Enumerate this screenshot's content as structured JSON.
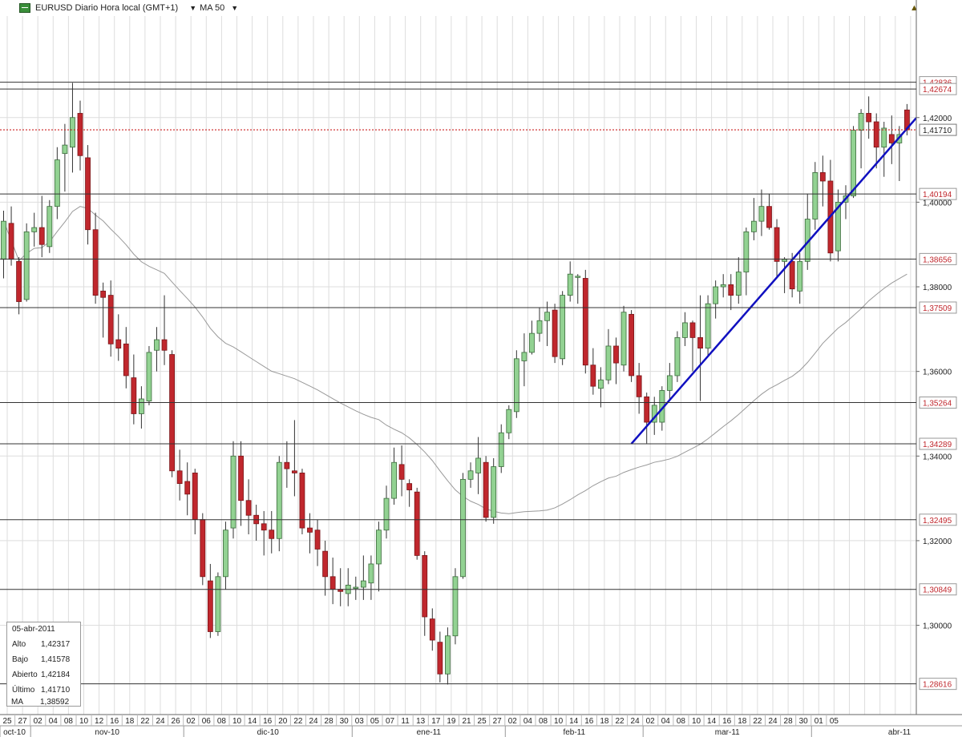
{
  "toolbar": {
    "symbol": "EURUSD Diario Hora local (GMT+1)",
    "indicator": "MA 50"
  },
  "info_box": {
    "date": "05-abr-2011",
    "rows": [
      {
        "label": "Alto",
        "value": "1,42317"
      },
      {
        "label": "Bajo",
        "value": "1,41578"
      },
      {
        "label": "Abierto",
        "value": "1,42184"
      },
      {
        "label": "Último",
        "value": "1,41710"
      },
      {
        "label": "MA",
        "value": "1,38592"
      }
    ]
  },
  "colors": {
    "up": "#92d292",
    "down": "#c0272d",
    "wick": "#333333",
    "ma": "#999999",
    "trendline": "#1010c0",
    "level_label": "#c0272d",
    "last_price": "#cc2222",
    "grid": "#dddddd"
  },
  "chart_data": {
    "type": "candlestick",
    "ylim": [
      1.2789,
      1.444
    ],
    "yticks": [
      "1,42000",
      "1,40000",
      "1,38000",
      "1,36000",
      "1,34000",
      "1,32000",
      "1,30000"
    ],
    "yticks_values": [
      1.42,
      1.4,
      1.38,
      1.36,
      1.34,
      1.32,
      1.3
    ],
    "day_labels": [
      "25",
      "27",
      "02",
      "04",
      "08",
      "10",
      "12",
      "16",
      "18",
      "22",
      "24",
      "26",
      "02",
      "06",
      "08",
      "10",
      "14",
      "16",
      "20",
      "22",
      "24",
      "28",
      "30",
      "03",
      "05",
      "07",
      "11",
      "13",
      "17",
      "19",
      "21",
      "25",
      "27",
      "02",
      "04",
      "08",
      "10",
      "14",
      "16",
      "18",
      "22",
      "24",
      "02",
      "04",
      "08",
      "10",
      "14",
      "16",
      "18",
      "22",
      "24",
      "28",
      "30",
      "01",
      "05"
    ],
    "month_labels": [
      "oct-10",
      "nov-10",
      "dic-10",
      "ene-11",
      "feb-11",
      "mar-11",
      "abr-11"
    ],
    "levels": [
      {
        "label": "1,42836",
        "value": 1.42836
      },
      {
        "label": "1,42674",
        "value": 1.42674
      },
      {
        "label": "1,40194",
        "value": 1.40194
      },
      {
        "label": "1,38656",
        "value": 1.38656
      },
      {
        "label": "1,37509",
        "value": 1.37509
      },
      {
        "label": "1,35264",
        "value": 1.35264
      },
      {
        "label": "1,34289",
        "value": 1.34289
      },
      {
        "label": "1,32495",
        "value": 1.32495
      },
      {
        "label": "1,30849",
        "value": 1.30849
      },
      {
        "label": "1,28616",
        "value": 1.28616
      }
    ],
    "last_price": {
      "label": "1,41710",
      "value": 1.4171
    },
    "trendline": {
      "from": {
        "date": "14-feb-2011",
        "value": 1.3429
      },
      "to": {
        "date": "05-abr-2011",
        "value": 1.4174
      }
    },
    "candles": [
      {
        "d": "21-oct-2010",
        "o": 1.3865,
        "h": 1.398,
        "l": 1.382,
        "c": 1.3955
      },
      {
        "d": "22-oct-2010",
        "o": 1.395,
        "h": 1.399,
        "l": 1.385,
        "c": 1.3865
      },
      {
        "d": "25-oct-2010",
        "o": 1.386,
        "h": 1.387,
        "l": 1.3735,
        "c": 1.3765
      },
      {
        "d": "26-oct-2010",
        "o": 1.377,
        "h": 1.395,
        "l": 1.3765,
        "c": 1.393
      },
      {
        "d": "27-oct-2010",
        "o": 1.393,
        "h": 1.3975,
        "l": 1.3895,
        "c": 1.394
      },
      {
        "d": "28-oct-2010",
        "o": 1.394,
        "h": 1.4015,
        "l": 1.387,
        "c": 1.39
      },
      {
        "d": "29-oct-2010",
        "o": 1.3895,
        "h": 1.4005,
        "l": 1.388,
        "c": 1.399
      },
      {
        "d": "01-nov-2010",
        "o": 1.399,
        "h": 1.413,
        "l": 1.396,
        "c": 1.41
      },
      {
        "d": "02-nov-2010",
        "o": 1.4115,
        "h": 1.4185,
        "l": 1.4025,
        "c": 1.4135
      },
      {
        "d": "03-nov-2010",
        "o": 1.413,
        "h": 1.4282,
        "l": 1.407,
        "c": 1.42
      },
      {
        "d": "04-nov-2010",
        "o": 1.421,
        "h": 1.424,
        "l": 1.4075,
        "c": 1.411
      },
      {
        "d": "05-nov-2010",
        "o": 1.4105,
        "h": 1.4135,
        "l": 1.39,
        "c": 1.3935
      },
      {
        "d": "08-nov-2010",
        "o": 1.3935,
        "h": 1.3975,
        "l": 1.376,
        "c": 1.378
      },
      {
        "d": "09-nov-2010",
        "o": 1.379,
        "h": 1.381,
        "l": 1.368,
        "c": 1.3775
      },
      {
        "d": "10-nov-2010",
        "o": 1.378,
        "h": 1.3815,
        "l": 1.3635,
        "c": 1.3665
      },
      {
        "d": "11-nov-2010",
        "o": 1.3675,
        "h": 1.3735,
        "l": 1.3625,
        "c": 1.3655
      },
      {
        "d": "12-nov-2010",
        "o": 1.3665,
        "h": 1.3705,
        "l": 1.356,
        "c": 1.359
      },
      {
        "d": "15-nov-2010",
        "o": 1.3585,
        "h": 1.364,
        "l": 1.3475,
        "c": 1.35
      },
      {
        "d": "16-nov-2010",
        "o": 1.35,
        "h": 1.3565,
        "l": 1.3465,
        "c": 1.3535
      },
      {
        "d": "17-nov-2010",
        "o": 1.353,
        "h": 1.366,
        "l": 1.352,
        "c": 1.3645
      },
      {
        "d": "18-nov-2010",
        "o": 1.365,
        "h": 1.3705,
        "l": 1.36,
        "c": 1.3675
      },
      {
        "d": "19-nov-2010",
        "o": 1.3675,
        "h": 1.378,
        "l": 1.3615,
        "c": 1.365
      },
      {
        "d": "22-nov-2010",
        "o": 1.364,
        "h": 1.365,
        "l": 1.335,
        "c": 1.3365
      },
      {
        "d": "23-nov-2010",
        "o": 1.3365,
        "h": 1.3415,
        "l": 1.3295,
        "c": 1.3335
      },
      {
        "d": "24-nov-2010",
        "o": 1.334,
        "h": 1.3385,
        "l": 1.326,
        "c": 1.331
      },
      {
        "d": "25-nov-2010",
        "o": 1.336,
        "h": 1.337,
        "l": 1.3215,
        "c": 1.325
      },
      {
        "d": "26-nov-2010",
        "o": 1.325,
        "h": 1.3265,
        "l": 1.3095,
        "c": 1.3115
      },
      {
        "d": "29-nov-2010",
        "o": 1.3105,
        "h": 1.3145,
        "l": 1.297,
        "c": 1.2985
      },
      {
        "d": "30-nov-2010",
        "o": 1.2985,
        "h": 1.3125,
        "l": 1.2975,
        "c": 1.3115
      },
      {
        "d": "01-dic-2010",
        "o": 1.3115,
        "h": 1.3245,
        "l": 1.3085,
        "c": 1.3225
      },
      {
        "d": "02-dic-2010",
        "o": 1.323,
        "h": 1.3435,
        "l": 1.3205,
        "c": 1.34
      },
      {
        "d": "03-dic-2010",
        "o": 1.34,
        "h": 1.3435,
        "l": 1.3235,
        "c": 1.3295
      },
      {
        "d": "06-dic-2010",
        "o": 1.3295,
        "h": 1.3345,
        "l": 1.3215,
        "c": 1.326
      },
      {
        "d": "07-dic-2010",
        "o": 1.326,
        "h": 1.3285,
        "l": 1.32,
        "c": 1.324
      },
      {
        "d": "08-dic-2010",
        "o": 1.324,
        "h": 1.327,
        "l": 1.3165,
        "c": 1.3225
      },
      {
        "d": "09-dic-2010",
        "o": 1.3225,
        "h": 1.327,
        "l": 1.317,
        "c": 1.3205
      },
      {
        "d": "10-dic-2010",
        "o": 1.3205,
        "h": 1.34,
        "l": 1.3175,
        "c": 1.3385
      },
      {
        "d": "13-dic-2010",
        "o": 1.3385,
        "h": 1.3435,
        "l": 1.3325,
        "c": 1.337
      },
      {
        "d": "14-dic-2010",
        "o": 1.3365,
        "h": 1.3485,
        "l": 1.3305,
        "c": 1.336
      },
      {
        "d": "15-dic-2010",
        "o": 1.336,
        "h": 1.337,
        "l": 1.3215,
        "c": 1.323
      },
      {
        "d": "16-dic-2010",
        "o": 1.323,
        "h": 1.3265,
        "l": 1.317,
        "c": 1.322
      },
      {
        "d": "17-dic-2010",
        "o": 1.3225,
        "h": 1.325,
        "l": 1.314,
        "c": 1.318
      },
      {
        "d": "20-dic-2010",
        "o": 1.3175,
        "h": 1.32,
        "l": 1.307,
        "c": 1.3115
      },
      {
        "d": "21-dic-2010",
        "o": 1.3115,
        "h": 1.316,
        "l": 1.305,
        "c": 1.3085
      },
      {
        "d": "22-dic-2010",
        "o": 1.3085,
        "h": 1.3135,
        "l": 1.3045,
        "c": 1.308
      },
      {
        "d": "23-dic-2010",
        "o": 1.3075,
        "h": 1.3135,
        "l": 1.3045,
        "c": 1.3095
      },
      {
        "d": "24-dic-2010",
        "o": 1.309,
        "h": 1.3115,
        "l": 1.306,
        "c": 1.309
      },
      {
        "d": "27-dic-2010",
        "o": 1.309,
        "h": 1.3165,
        "l": 1.306,
        "c": 1.3105
      },
      {
        "d": "28-dic-2010",
        "o": 1.31,
        "h": 1.3165,
        "l": 1.306,
        "c": 1.3145
      },
      {
        "d": "29-dic-2010",
        "o": 1.3145,
        "h": 1.3245,
        "l": 1.308,
        "c": 1.3225
      },
      {
        "d": "30-dic-2010",
        "o": 1.3225,
        "h": 1.333,
        "l": 1.3205,
        "c": 1.33
      },
      {
        "d": "31-dic-2010",
        "o": 1.33,
        "h": 1.342,
        "l": 1.3285,
        "c": 1.3385
      },
      {
        "d": "03-ene-2011",
        "o": 1.338,
        "h": 1.3425,
        "l": 1.3305,
        "c": 1.3345
      },
      {
        "d": "04-ene-2011",
        "o": 1.3335,
        "h": 1.3345,
        "l": 1.328,
        "c": 1.332
      },
      {
        "d": "05-ene-2011",
        "o": 1.3315,
        "h": 1.3325,
        "l": 1.3155,
        "c": 1.3165
      },
      {
        "d": "06-ene-2011",
        "o": 1.3165,
        "h": 1.3175,
        "l": 1.2975,
        "c": 1.302
      },
      {
        "d": "07-ene-2011",
        "o": 1.3015,
        "h": 1.304,
        "l": 1.294,
        "c": 1.2965
      },
      {
        "d": "10-ene-2011",
        "o": 1.296,
        "h": 1.2985,
        "l": 1.2865,
        "c": 1.2885
      },
      {
        "d": "11-ene-2011",
        "o": 1.2885,
        "h": 1.2995,
        "l": 1.286,
        "c": 1.2975
      },
      {
        "d": "12-ene-2011",
        "o": 1.2975,
        "h": 1.3135,
        "l": 1.2955,
        "c": 1.3115
      },
      {
        "d": "13-ene-2011",
        "o": 1.3115,
        "h": 1.336,
        "l": 1.311,
        "c": 1.3345
      },
      {
        "d": "14-ene-2011",
        "o": 1.3345,
        "h": 1.3385,
        "l": 1.3325,
        "c": 1.3365
      },
      {
        "d": "17-ene-2011",
        "o": 1.336,
        "h": 1.3445,
        "l": 1.331,
        "c": 1.3395
      },
      {
        "d": "18-ene-2011",
        "o": 1.3385,
        "h": 1.34,
        "l": 1.3245,
        "c": 1.3255
      },
      {
        "d": "19-ene-2011",
        "o": 1.3255,
        "h": 1.3395,
        "l": 1.324,
        "c": 1.3375
      },
      {
        "d": "20-ene-2011",
        "o": 1.3375,
        "h": 1.3475,
        "l": 1.336,
        "c": 1.3455
      },
      {
        "d": "21-ene-2011",
        "o": 1.3455,
        "h": 1.352,
        "l": 1.344,
        "c": 1.351
      },
      {
        "d": "24-ene-2011",
        "o": 1.3505,
        "h": 1.365,
        "l": 1.349,
        "c": 1.363
      },
      {
        "d": "25-ene-2011",
        "o": 1.3625,
        "h": 1.369,
        "l": 1.3565,
        "c": 1.3645
      },
      {
        "d": "26-ene-2011",
        "o": 1.3645,
        "h": 1.372,
        "l": 1.364,
        "c": 1.369
      },
      {
        "d": "27-ene-2011",
        "o": 1.369,
        "h": 1.375,
        "l": 1.367,
        "c": 1.372
      },
      {
        "d": "28-ene-2011",
        "o": 1.372,
        "h": 1.3765,
        "l": 1.366,
        "c": 1.374
      },
      {
        "d": "31-ene-2011",
        "o": 1.3745,
        "h": 1.376,
        "l": 1.362,
        "c": 1.3635
      },
      {
        "d": "01-feb-2011",
        "o": 1.363,
        "h": 1.379,
        "l": 1.3615,
        "c": 1.378
      },
      {
        "d": "02-feb-2011",
        "o": 1.378,
        "h": 1.386,
        "l": 1.3765,
        "c": 1.383
      },
      {
        "d": "03-feb-2011",
        "o": 1.3825,
        "h": 1.383,
        "l": 1.376,
        "c": 1.3825
      },
      {
        "d": "04-feb-2011",
        "o": 1.382,
        "h": 1.384,
        "l": 1.3595,
        "c": 1.3615
      },
      {
        "d": "07-feb-2011",
        "o": 1.3615,
        "h": 1.3655,
        "l": 1.3545,
        "c": 1.3565
      },
      {
        "d": "08-feb-2011",
        "o": 1.356,
        "h": 1.361,
        "l": 1.3515,
        "c": 1.358
      },
      {
        "d": "09-feb-2011",
        "o": 1.358,
        "h": 1.37,
        "l": 1.357,
        "c": 1.366
      },
      {
        "d": "10-feb-2011",
        "o": 1.366,
        "h": 1.368,
        "l": 1.357,
        "c": 1.362
      },
      {
        "d": "11-feb-2011",
        "o": 1.3615,
        "h": 1.3755,
        "l": 1.36,
        "c": 1.374
      },
      {
        "d": "14-feb-2011",
        "o": 1.3735,
        "h": 1.3745,
        "l": 1.3575,
        "c": 1.359
      },
      {
        "d": "15-feb-2011",
        "o": 1.359,
        "h": 1.362,
        "l": 1.35,
        "c": 1.354
      },
      {
        "d": "16-feb-2011",
        "o": 1.354,
        "h": 1.355,
        "l": 1.343,
        "c": 1.348
      },
      {
        "d": "17-feb-2011",
        "o": 1.348,
        "h": 1.354,
        "l": 1.345,
        "c": 1.352
      },
      {
        "d": "18-feb-2011",
        "o": 1.348,
        "h": 1.3565,
        "l": 1.346,
        "c": 1.3555
      },
      {
        "d": "21-feb-2011",
        "o": 1.3555,
        "h": 1.362,
        "l": 1.353,
        "c": 1.359
      },
      {
        "d": "22-feb-2011",
        "o": 1.359,
        "h": 1.3695,
        "l": 1.3575,
        "c": 1.368
      },
      {
        "d": "23-feb-2011",
        "o": 1.368,
        "h": 1.374,
        "l": 1.366,
        "c": 1.3715
      },
      {
        "d": "24-feb-2011",
        "o": 1.3715,
        "h": 1.372,
        "l": 1.36,
        "c": 1.368
      },
      {
        "d": "25-feb-2011",
        "o": 1.368,
        "h": 1.378,
        "l": 1.353,
        "c": 1.3655
      },
      {
        "d": "28-feb-2011",
        "o": 1.3655,
        "h": 1.378,
        "l": 1.3635,
        "c": 1.376
      },
      {
        "d": "01-mar-2011",
        "o": 1.376,
        "h": 1.3815,
        "l": 1.3725,
        "c": 1.38
      },
      {
        "d": "02-mar-2011",
        "o": 1.38,
        "h": 1.383,
        "l": 1.3775,
        "c": 1.3805
      },
      {
        "d": "03-mar-2011",
        "o": 1.3805,
        "h": 1.383,
        "l": 1.3745,
        "c": 1.378
      },
      {
        "d": "04-mar-2011",
        "o": 1.378,
        "h": 1.387,
        "l": 1.376,
        "c": 1.3835
      },
      {
        "d": "07-mar-2011",
        "o": 1.3835,
        "h": 1.394,
        "l": 1.378,
        "c": 1.393
      },
      {
        "d": "08-mar-2011",
        "o": 1.393,
        "h": 1.401,
        "l": 1.391,
        "c": 1.3955
      },
      {
        "d": "09-mar-2011",
        "o": 1.3955,
        "h": 1.403,
        "l": 1.392,
        "c": 1.399
      },
      {
        "d": "10-mar-2011",
        "o": 1.399,
        "h": 1.402,
        "l": 1.3935,
        "c": 1.394
      },
      {
        "d": "11-mar-2011",
        "o": 1.394,
        "h": 1.396,
        "l": 1.3825,
        "c": 1.386
      },
      {
        "d": "14-mar-2011",
        "o": 1.386,
        "h": 1.387,
        "l": 1.3785,
        "c": 1.3865
      },
      {
        "d": "15-mar-2011",
        "o": 1.386,
        "h": 1.388,
        "l": 1.3775,
        "c": 1.3795
      },
      {
        "d": "16-mar-2011",
        "o": 1.379,
        "h": 1.388,
        "l": 1.376,
        "c": 1.386
      },
      {
        "d": "17-mar-2011",
        "o": 1.386,
        "h": 1.402,
        "l": 1.384,
        "c": 1.396
      },
      {
        "d": "18-mar-2011",
        "o": 1.396,
        "h": 1.4095,
        "l": 1.3935,
        "c": 1.407
      },
      {
        "d": "21-mar-2011",
        "o": 1.407,
        "h": 1.411,
        "l": 1.399,
        "c": 1.405
      },
      {
        "d": "22-mar-2011",
        "o": 1.405,
        "h": 1.41,
        "l": 1.386,
        "c": 1.388
      },
      {
        "d": "23-mar-2011",
        "o": 1.3885,
        "h": 1.403,
        "l": 1.386,
        "c": 1.4
      },
      {
        "d": "24-mar-2011",
        "o": 1.4,
        "h": 1.404,
        "l": 1.396,
        "c": 1.4015
      },
      {
        "d": "25-mar-2011",
        "o": 1.4015,
        "h": 1.418,
        "l": 1.401,
        "c": 1.417
      },
      {
        "d": "28-mar-2011",
        "o": 1.417,
        "h": 1.422,
        "l": 1.408,
        "c": 1.421
      },
      {
        "d": "29-mar-2011",
        "o": 1.421,
        "h": 1.425,
        "l": 1.415,
        "c": 1.419
      },
      {
        "d": "30-mar-2011",
        "o": 1.419,
        "h": 1.421,
        "l": 1.408,
        "c": 1.413
      },
      {
        "d": "31-mar-2011",
        "o": 1.413,
        "h": 1.419,
        "l": 1.406,
        "c": 1.4175
      },
      {
        "d": "01-abr-2011",
        "o": 1.416,
        "h": 1.4205,
        "l": 1.409,
        "c": 1.414
      },
      {
        "d": "04-abr-2011",
        "o": 1.414,
        "h": 1.418,
        "l": 1.405,
        "c": 1.416
      },
      {
        "d": "05-abr-2011",
        "o": 1.4218,
        "h": 1.4232,
        "l": 1.4158,
        "c": 1.4171
      }
    ]
  }
}
